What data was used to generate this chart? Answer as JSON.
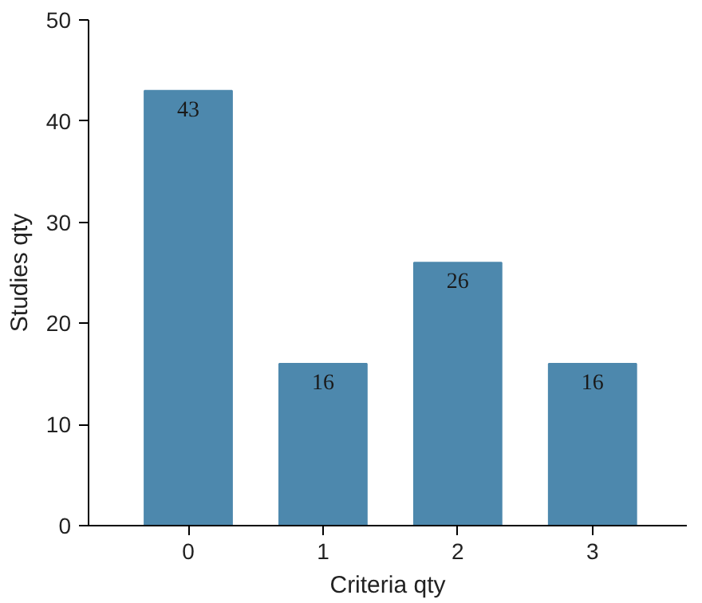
{
  "chart_data": {
    "type": "bar",
    "xlabel": "Criteria qty",
    "ylabel": "Studies qty",
    "categories": [
      "0",
      "1",
      "2",
      "3"
    ],
    "values": [
      43,
      16,
      26,
      16
    ],
    "color": "#4d88ad",
    "ylim": [
      0,
      50
    ],
    "yticks": [
      0,
      10,
      20,
      30,
      40,
      50
    ],
    "grid": false,
    "data_labels": true
  }
}
